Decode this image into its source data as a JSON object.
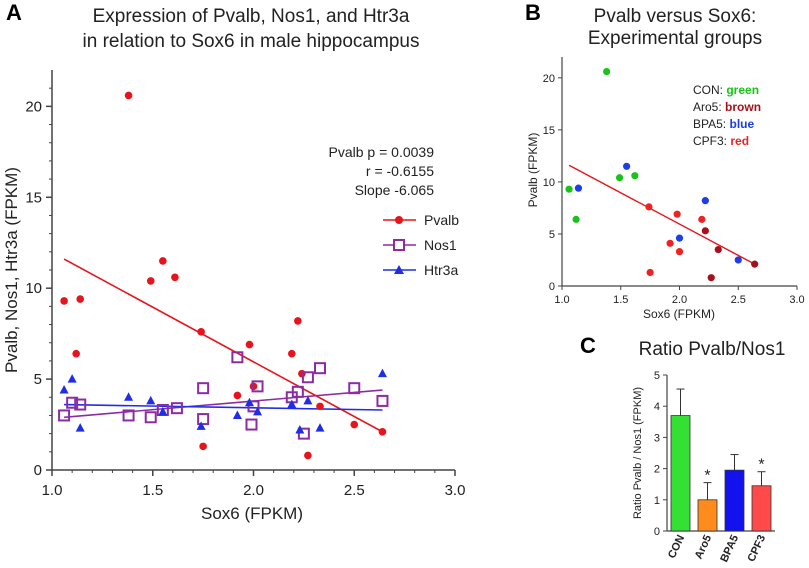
{
  "chart_data": [
    {
      "panel": "A",
      "type": "scatter",
      "title": [
        "Expression of Pvalb, Nos1, and Htr3a",
        "in relation to Sox6 in male hippocampus"
      ],
      "xlabel": "Sox6 (FPKM)",
      "ylabel": "Pvalb, Nos1, Htr3a (FPKM)",
      "xlim": [
        1.0,
        3.0
      ],
      "ylim": [
        0,
        22
      ],
      "xticks": [
        "1.0",
        "1.5",
        "2.0",
        "2.5",
        "3.0"
      ],
      "yticks": [
        "0",
        "5",
        "10",
        "15",
        "20"
      ],
      "annotation": [
        "Pvalb p = 0.0039",
        "r = -0.6155",
        "Slope -6.065"
      ],
      "legend_position": "right",
      "series": [
        {
          "name": "Pvalb",
          "color": "#e8141c",
          "marker": "circle",
          "points": [
            [
              1.06,
              9.3
            ],
            [
              1.12,
              6.4
            ],
            [
              1.14,
              9.4
            ],
            [
              1.38,
              20.6
            ],
            [
              1.49,
              10.4
            ],
            [
              1.55,
              11.5
            ],
            [
              1.61,
              10.6
            ],
            [
              1.74,
              7.6
            ],
            [
              1.75,
              1.3
            ],
            [
              1.92,
              4.1
            ],
            [
              1.98,
              6.9
            ],
            [
              2.0,
              4.6
            ],
            [
              2.19,
              6.4
            ],
            [
              2.22,
              8.2
            ],
            [
              2.24,
              5.3
            ],
            [
              2.27,
              0.8
            ],
            [
              2.33,
              3.5
            ],
            [
              2.5,
              2.5
            ],
            [
              2.64,
              2.1
            ]
          ],
          "fit": [
            [
              1.06,
              11.6
            ],
            [
              2.64,
              2.1
            ]
          ]
        },
        {
          "name": "Nos1",
          "color": "#8b2ca3",
          "marker": "square-open",
          "points": [
            [
              1.06,
              3.0
            ],
            [
              1.1,
              3.7
            ],
            [
              1.14,
              3.6
            ],
            [
              1.38,
              3.0
            ],
            [
              1.49,
              2.9
            ],
            [
              1.55,
              3.3
            ],
            [
              1.62,
              3.4
            ],
            [
              1.75,
              4.5
            ],
            [
              1.75,
              2.8
            ],
            [
              1.92,
              6.2
            ],
            [
              1.99,
              2.5
            ],
            [
              2.0,
              3.5
            ],
            [
              2.02,
              4.6
            ],
            [
              2.19,
              4.0
            ],
            [
              2.22,
              4.3
            ],
            [
              2.25,
              2.0
            ],
            [
              2.27,
              5.1
            ],
            [
              2.33,
              5.6
            ],
            [
              2.5,
              4.5
            ],
            [
              2.64,
              3.8
            ]
          ],
          "fit": [
            [
              1.06,
              2.9
            ],
            [
              2.64,
              4.4
            ]
          ]
        },
        {
          "name": "Htr3a",
          "color": "#1f2ee6",
          "marker": "triangle",
          "points": [
            [
              1.06,
              4.4
            ],
            [
              1.1,
              5.0
            ],
            [
              1.14,
              2.3
            ],
            [
              1.38,
              4.0
            ],
            [
              1.49,
              3.8
            ],
            [
              1.55,
              3.2
            ],
            [
              1.74,
              2.4
            ],
            [
              1.92,
              3.0
            ],
            [
              1.98,
              3.7
            ],
            [
              2.02,
              3.2
            ],
            [
              2.19,
              3.6
            ],
            [
              2.23,
              2.2
            ],
            [
              2.27,
              3.8
            ],
            [
              2.33,
              2.3
            ],
            [
              2.64,
              5.3
            ]
          ],
          "fit": [
            [
              1.06,
              3.6
            ],
            [
              2.64,
              3.3
            ]
          ]
        }
      ]
    },
    {
      "panel": "B",
      "type": "scatter",
      "title": [
        "Pvalb versus Sox6:",
        "Experimental groups"
      ],
      "xlabel": "Sox6 (FPKM)",
      "ylabel": "Pvalb (FPKM)",
      "xlim": [
        1.0,
        3.0
      ],
      "ylim": [
        0,
        22
      ],
      "xticks": [
        "1.0",
        "1.5",
        "2.0",
        "2.5",
        "3.0"
      ],
      "yticks": [
        "0",
        "5",
        "10",
        "15",
        "20"
      ],
      "groups": [
        {
          "label": "CON:",
          "color_name": "green",
          "color": "#19c319",
          "points": [
            [
              1.06,
              9.3
            ],
            [
              1.12,
              6.4
            ],
            [
              1.38,
              20.6
            ],
            [
              1.49,
              10.4
            ],
            [
              1.62,
              10.6
            ]
          ]
        },
        {
          "label": "Aro5:",
          "color_name": "brown",
          "color": "#a3121c",
          "points": [
            [
              2.22,
              5.3
            ],
            [
              2.27,
              0.8
            ],
            [
              2.33,
              3.5
            ],
            [
              2.64,
              2.1
            ]
          ]
        },
        {
          "label": "BPA5:",
          "color_name": "blue",
          "color": "#1b3ee8",
          "points": [
            [
              1.14,
              9.4
            ],
            [
              1.55,
              11.5
            ],
            [
              2.0,
              4.6
            ],
            [
              2.22,
              8.2
            ],
            [
              2.5,
              2.5
            ]
          ]
        },
        {
          "label": "CPF3:",
          "color_name": "red",
          "color": "#ee2222",
          "points": [
            [
              1.74,
              7.6
            ],
            [
              1.75,
              1.3
            ],
            [
              1.92,
              4.1
            ],
            [
              1.98,
              6.9
            ],
            [
              2.0,
              3.3
            ],
            [
              2.19,
              6.4
            ]
          ]
        }
      ],
      "fit": [
        [
          1.06,
          11.6
        ],
        [
          2.64,
          2.1
        ]
      ],
      "fit_color": "#e8141c"
    },
    {
      "panel": "C",
      "type": "bar",
      "title": "Ratio Pvalb/Nos1",
      "ylabel": "Ratio Pvalb / Nos1 (FPKM)",
      "ylim": [
        0,
        5
      ],
      "yticks": [
        "0",
        "1",
        "2",
        "3",
        "4",
        "5"
      ],
      "categories": [
        "CON",
        "Aro5",
        "BPA5",
        "CPF3"
      ],
      "values": [
        3.7,
        1.0,
        1.95,
        1.45
      ],
      "errors": [
        0.85,
        0.55,
        0.5,
        0.45
      ],
      "colors": [
        "#33e033",
        "#ff8a1e",
        "#1212ee",
        "#ff4a4a"
      ],
      "significance": [
        "",
        "*",
        "",
        "*"
      ]
    }
  ]
}
